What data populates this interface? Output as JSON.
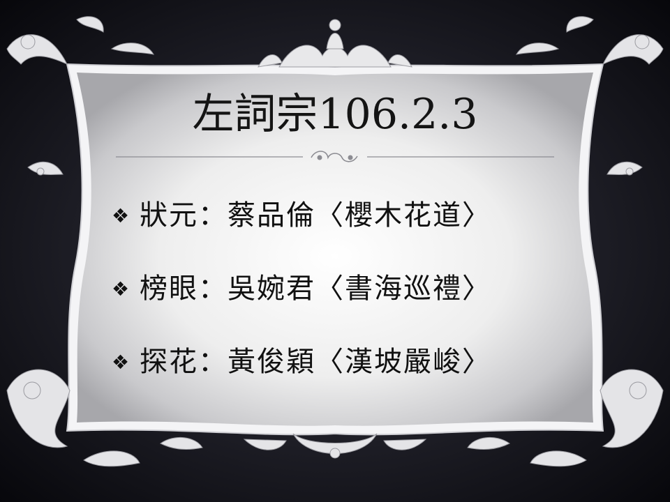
{
  "slide": {
    "title": "左詞宗106.2.3",
    "bullet_icon": "four-diamond-bullet-icon",
    "bullet_glyph": "❖",
    "items": [
      {
        "text": "狀元：蔡品倫〈櫻木花道〉"
      },
      {
        "text": "榜眼：吳婉君〈書海巡禮〉"
      },
      {
        "text": "探花：黃俊穎〈漢坡嚴峻〉"
      }
    ]
  },
  "colors": {
    "background_dark": "#0b0b10",
    "frame_light": "#f2f2f2",
    "text": "#111111"
  }
}
